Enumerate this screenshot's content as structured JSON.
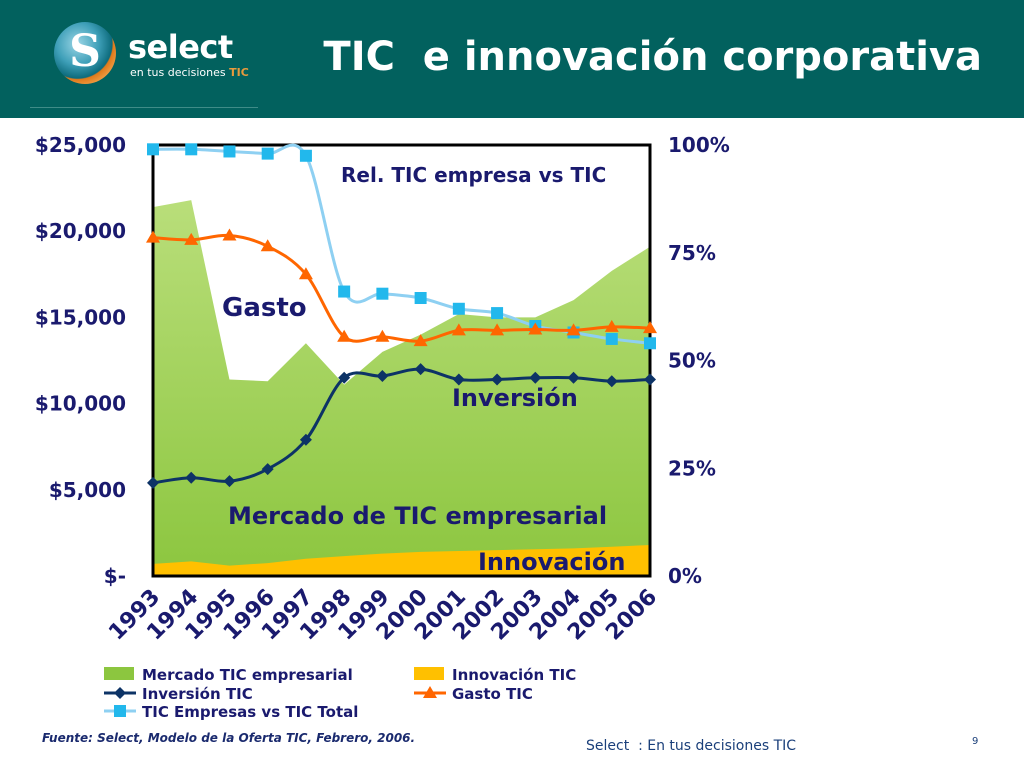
{
  "header": {
    "title": "TIC  e innovación corporativa",
    "logo_letter": "S",
    "logo_name": "select",
    "logo_tagline_main": "en tus decisiones ",
    "logo_tagline_accent": "TIC"
  },
  "colors": {
    "header_bg": "#02615e",
    "mercado": "#8cc63f",
    "innovacion": "#ffc000",
    "inversion": "#0d3366",
    "gasto": "#ff6600",
    "rel_tic": "#8ed0f2",
    "rel_tic_marker": "#22b8ec",
    "label_text": "#1a1a6e"
  },
  "chart_data": {
    "type": "area",
    "categories": [
      "1993",
      "1994",
      "1995",
      "1996",
      "1997",
      "1998",
      "1999",
      "2000",
      "2001",
      "2002",
      "2003",
      "2004",
      "2005",
      "2006"
    ],
    "y_left": {
      "ticks": [
        "$25,000",
        "$20,000",
        "$15,000",
        "$10,000",
        "$5,000",
        "$-"
      ],
      "ylim": [
        0,
        25000
      ]
    },
    "y_right": {
      "ticks": [
        "100%",
        "75%",
        "50%",
        "25%",
        "0%"
      ],
      "ylim": [
        0,
        1
      ]
    },
    "series": [
      {
        "name": "Mercado TIC empresarial",
        "kind": "area",
        "axis": "left",
        "values": [
          21400,
          21800,
          11400,
          11300,
          13500,
          11100,
          13000,
          14000,
          15200,
          15000,
          15000,
          16000,
          17700,
          19100
        ]
      },
      {
        "name": "Innovación TIC",
        "kind": "area",
        "axis": "left",
        "values": [
          700,
          850,
          600,
          750,
          1000,
          1150,
          1300,
          1400,
          1450,
          1500,
          1550,
          1600,
          1700,
          1800
        ]
      },
      {
        "name": "Inversión TIC",
        "kind": "line",
        "axis": "left",
        "marker": "diamond",
        "values": [
          5400,
          5700,
          5500,
          6200,
          7900,
          11500,
          11600,
          12000,
          11400,
          11400,
          11500,
          11500,
          11300,
          11400
        ]
      },
      {
        "name": "Gasto TIC",
        "kind": "line",
        "axis": "right",
        "marker": "triangle",
        "values": [
          0.785,
          0.78,
          0.79,
          0.765,
          0.7,
          0.555,
          0.555,
          0.545,
          0.57,
          0.57,
          0.572,
          0.57,
          0.578,
          0.575
        ]
      },
      {
        "name": "TIC Empresas vs TIC Total",
        "kind": "line",
        "axis": "right",
        "marker": "square",
        "values": [
          0.99,
          0.99,
          0.985,
          0.98,
          0.975,
          0.66,
          0.655,
          0.645,
          0.62,
          0.61,
          0.58,
          0.565,
          0.55,
          0.54
        ]
      }
    ],
    "annotations": [
      "Rel. TIC empresa vs TIC",
      "Gasto",
      "Inversión",
      "Mercado de TIC empresarial",
      "Innovación"
    ],
    "legend": [
      {
        "label": "Mercado TIC empresarial",
        "style": "area",
        "color": "#8cc63f"
      },
      {
        "label": "Innovación TIC",
        "style": "area",
        "color": "#ffc000"
      },
      {
        "label": "Inversión TIC",
        "style": "line-diamond",
        "color": "#0d3366"
      },
      {
        "label": "Gasto TIC",
        "style": "line-triangle",
        "color": "#ff6600"
      },
      {
        "label": "TIC Empresas vs TIC Total",
        "style": "line-square",
        "color": "#8ed0f2"
      }
    ],
    "legend_position": "bottom"
  },
  "footer": {
    "source": "Fuente: Select, Modelo de la Oferta TIC, Febrero, 2006.",
    "tagline": "Select  : En tus decisiones TIC",
    "page": "9"
  }
}
